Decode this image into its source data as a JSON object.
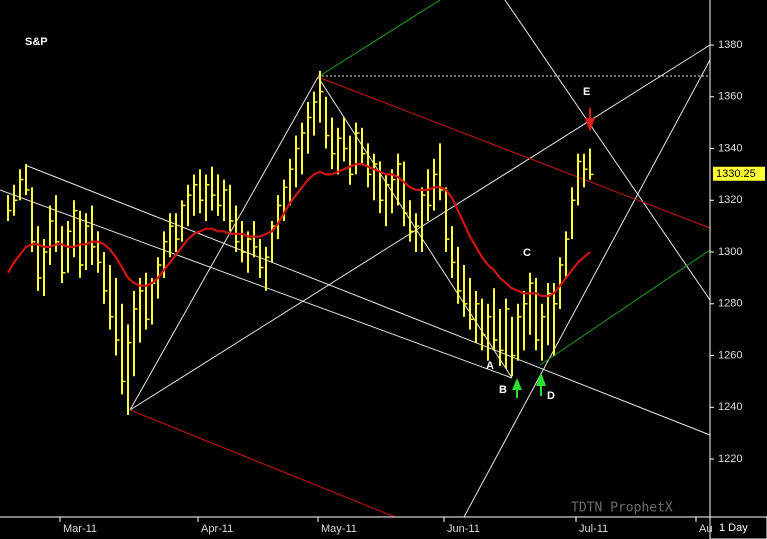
{
  "chart_data": {
    "type": "ohlc",
    "title": "S&P",
    "categories": [
      null,
      null,
      null,
      null,
      null,
      null,
      null,
      null,
      null,
      "Mar-11",
      null,
      null,
      null,
      null,
      null,
      null,
      null,
      null,
      null,
      null,
      null,
      null,
      null,
      null,
      null,
      null,
      null,
      null,
      null,
      null,
      null,
      null,
      "Apr-11",
      null,
      null,
      null,
      null,
      null,
      null,
      null,
      null,
      null,
      null,
      null,
      null,
      null,
      null,
      null,
      null,
      null,
      null,
      null,
      "May-11",
      null,
      null,
      null,
      null,
      null,
      null,
      null,
      null,
      null,
      null,
      null,
      null,
      null,
      null,
      null,
      null,
      null,
      null,
      null,
      null,
      "Jun-11",
      null,
      null,
      null,
      null,
      null,
      null,
      null,
      null,
      null,
      null,
      null,
      null,
      null,
      null,
      null,
      null,
      null,
      null,
      null,
      null,
      null,
      "Jul-11",
      null,
      null,
      null,
      null,
      null,
      null,
      null,
      null,
      null,
      null,
      null,
      null,
      null,
      null,
      null,
      null,
      null,
      null,
      null,
      "Au",
      null,
      null
    ],
    "high": [
      1322,
      1326,
      1332,
      1334,
      1325,
      1310,
      1305,
      1318,
      1322,
      1310,
      1312,
      1320,
      1316,
      1315,
      1318,
      1308,
      1300,
      1295,
      1290,
      1280,
      1272,
      1285,
      1290,
      1292,
      1290,
      1298,
      1308,
      1315,
      1315,
      1320,
      1326,
      1330,
      1332,
      1330,
      1333,
      1330,
      1328,
      1326,
      1318,
      1312,
      1308,
      1312,
      1305,
      1302,
      1312,
      1322,
      1328,
      1336,
      1345,
      1350,
      1358,
      1362,
      1370,
      1360,
      1352,
      1348,
      1352,
      1345,
      1350,
      1348,
      1342,
      1338,
      1335,
      1330,
      1332,
      1338,
      1335,
      1320,
      1315,
      1325,
      1332,
      1336,
      1342,
      1325,
      1310,
      1302,
      1295,
      1290,
      1285,
      1282,
      1280,
      1286,
      1278,
      1282,
      1275,
      1280,
      1285,
      1292,
      1290,
      1280,
      1288,
      1288,
      1298,
      1308,
      1325,
      1338,
      1338,
      1340,
      null,
      null,
      null,
      null,
      null,
      null,
      null,
      null,
      null,
      null,
      null,
      null,
      null,
      null,
      null,
      null,
      null,
      null,
      null,
      null
    ],
    "low": [
      1312,
      1314,
      1320,
      1322,
      1300,
      1285,
      1283,
      1295,
      1300,
      1288,
      1292,
      1298,
      1290,
      1293,
      1295,
      1292,
      1280,
      1270,
      1260,
      1245,
      1237,
      1252,
      1265,
      1270,
      1272,
      1282,
      1290,
      1298,
      1300,
      1304,
      1310,
      1314,
      1315,
      1312,
      1316,
      1314,
      1312,
      1308,
      1300,
      1296,
      1292,
      1298,
      1290,
      1285,
      1296,
      1305,
      1312,
      1318,
      1325,
      1330,
      1338,
      1345,
      1350,
      1340,
      1332,
      1330,
      1335,
      1326,
      1330,
      1334,
      1325,
      1320,
      1315,
      1310,
      1315,
      1318,
      1310,
      1304,
      1300,
      1300,
      1312,
      1316,
      1320,
      1300,
      1290,
      1280,
      1275,
      1270,
      1265,
      1262,
      1258,
      1262,
      1256,
      1255,
      1252,
      1258,
      1262,
      1268,
      1262,
      1258,
      1264,
      1260,
      1278,
      1290,
      1305,
      1318,
      1325,
      1328,
      null,
      null,
      null,
      null,
      null,
      null,
      null,
      null,
      null,
      null,
      null,
      null,
      null,
      null,
      null,
      null,
      null,
      null,
      null,
      null
    ],
    "close": [
      1316,
      1320,
      1328,
      1324,
      1304,
      1290,
      1300,
      1312,
      1304,
      1292,
      1308,
      1316,
      1295,
      1310,
      1302,
      1296,
      1285,
      1275,
      1266,
      1250,
      1265,
      1278,
      1285,
      1274,
      1288,
      1295,
      1304,
      1310,
      1305,
      1318,
      1322,
      1326,
      1320,
      1326,
      1322,
      1318,
      1324,
      1312,
      1304,
      1300,
      1305,
      1302,
      1294,
      1298,
      1310,
      1318,
      1325,
      1332,
      1340,
      1346,
      1352,
      1358,
      1362,
      1345,
      1338,
      1344,
      1340,
      1330,
      1346,
      1338,
      1330,
      1334,
      1320,
      1326,
      1328,
      1334,
      1315,
      1308,
      1310,
      1322,
      1318,
      1330,
      1324,
      1305,
      1296,
      1285,
      1280,
      1274,
      1280,
      1268,
      1275,
      1266,
      1262,
      1278,
      1260,
      1275,
      1280,
      1288,
      1266,
      1275,
      1284,
      1280,
      1295,
      1305,
      1320,
      1335,
      1332,
      1330,
      null,
      null,
      null,
      null,
      null,
      null,
      null,
      null,
      null,
      null,
      null,
      null,
      null,
      null,
      null,
      null,
      null,
      null,
      null,
      null
    ],
    "color": "#ffff33",
    "ma": {
      "color": "#d01414",
      "values": [
        1292,
        1296,
        1299,
        1302,
        1303,
        1303,
        1302,
        1302,
        1303,
        1303,
        1302,
        1302,
        1303,
        1303,
        1304,
        1304,
        1303,
        1301,
        1298,
        1294,
        1290,
        1288,
        1287,
        1287,
        1288,
        1290,
        1293,
        1296,
        1299,
        1302,
        1305,
        1307,
        1308,
        1309,
        1309,
        1308,
        1308,
        1307,
        1307,
        1307,
        1306,
        1306,
        1306,
        1307,
        1308,
        1311,
        1315,
        1319,
        1322,
        1325,
        1328,
        1330,
        1331,
        1330,
        1330,
        1331,
        1332,
        1333,
        1334,
        1334,
        1333,
        1332,
        1331,
        1330,
        1330,
        1329,
        1327,
        1325,
        1324,
        1324,
        1324,
        1325,
        1325,
        1324,
        1321,
        1316,
        1311,
        1306,
        1302,
        1298,
        1295,
        1293,
        1290,
        1288,
        1286,
        1285,
        1284,
        1284,
        1284,
        1283,
        1283,
        1284,
        1287,
        1290,
        1293,
        1296,
        1298,
        1300,
        null,
        null,
        null,
        null,
        null,
        null,
        null,
        null,
        null,
        null,
        null,
        null,
        null,
        null,
        null,
        null,
        null,
        null,
        null,
        null
      ]
    },
    "ylim": [
      1197.6,
      1397.4
    ],
    "yticks": [
      1220,
      1240,
      1260,
      1280,
      1300,
      1320,
      1340,
      1360,
      1380
    ],
    "last_price": 1330.25,
    "annotations": [
      "A",
      "B",
      "C",
      "D",
      "E"
    ],
    "watermark": "TDTN ProphetX",
    "interval": "1 Day"
  }
}
